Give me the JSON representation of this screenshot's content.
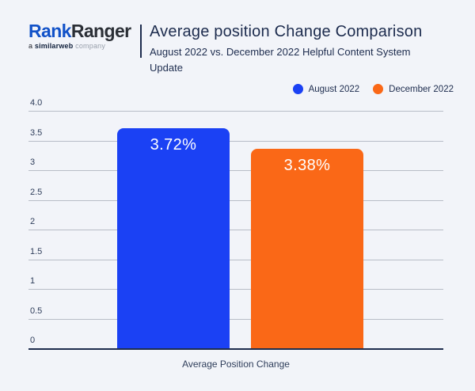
{
  "header": {
    "logo": {
      "part1": "Rank",
      "part2": "Ranger",
      "tagline_prefix": "a ",
      "tagline_bold": "similarweb",
      "tagline_suffix": " company"
    },
    "title": "Average position Change Comparison",
    "subtitle": "August 2022 vs. December 2022 Helpful Content System Update"
  },
  "colors": {
    "background": "#f2f4f9",
    "august": "#1b41f4",
    "december": "#fa6817",
    "axis": "#1e2d4d",
    "gridline": "#b8bdc7"
  },
  "chart_data": {
    "type": "bar",
    "categories": [
      "Average Position Change"
    ],
    "series": [
      {
        "name": "August 2022",
        "values": [
          3.72
        ],
        "data_labels": [
          "3.72%"
        ],
        "color": "#1b41f4"
      },
      {
        "name": "December 2022",
        "values": [
          3.38
        ],
        "data_labels": [
          "3.38%"
        ],
        "color": "#fa6817"
      }
    ],
    "title": "Average position Change Comparison",
    "subtitle": "August 2022 vs. December 2022 Helpful Content System Update",
    "xlabel": "Average Position Change",
    "ylabel": "",
    "ylim": [
      0,
      4
    ],
    "yticks": [
      0,
      0.5,
      1,
      1.5,
      2,
      2.5,
      3,
      3.5,
      4
    ],
    "ytick_labels": [
      "0",
      "0.5",
      "1",
      "1.5",
      "2",
      "2.5",
      "3",
      "3.5",
      "4.0"
    ],
    "grid": true,
    "legend_position": "top-right"
  }
}
